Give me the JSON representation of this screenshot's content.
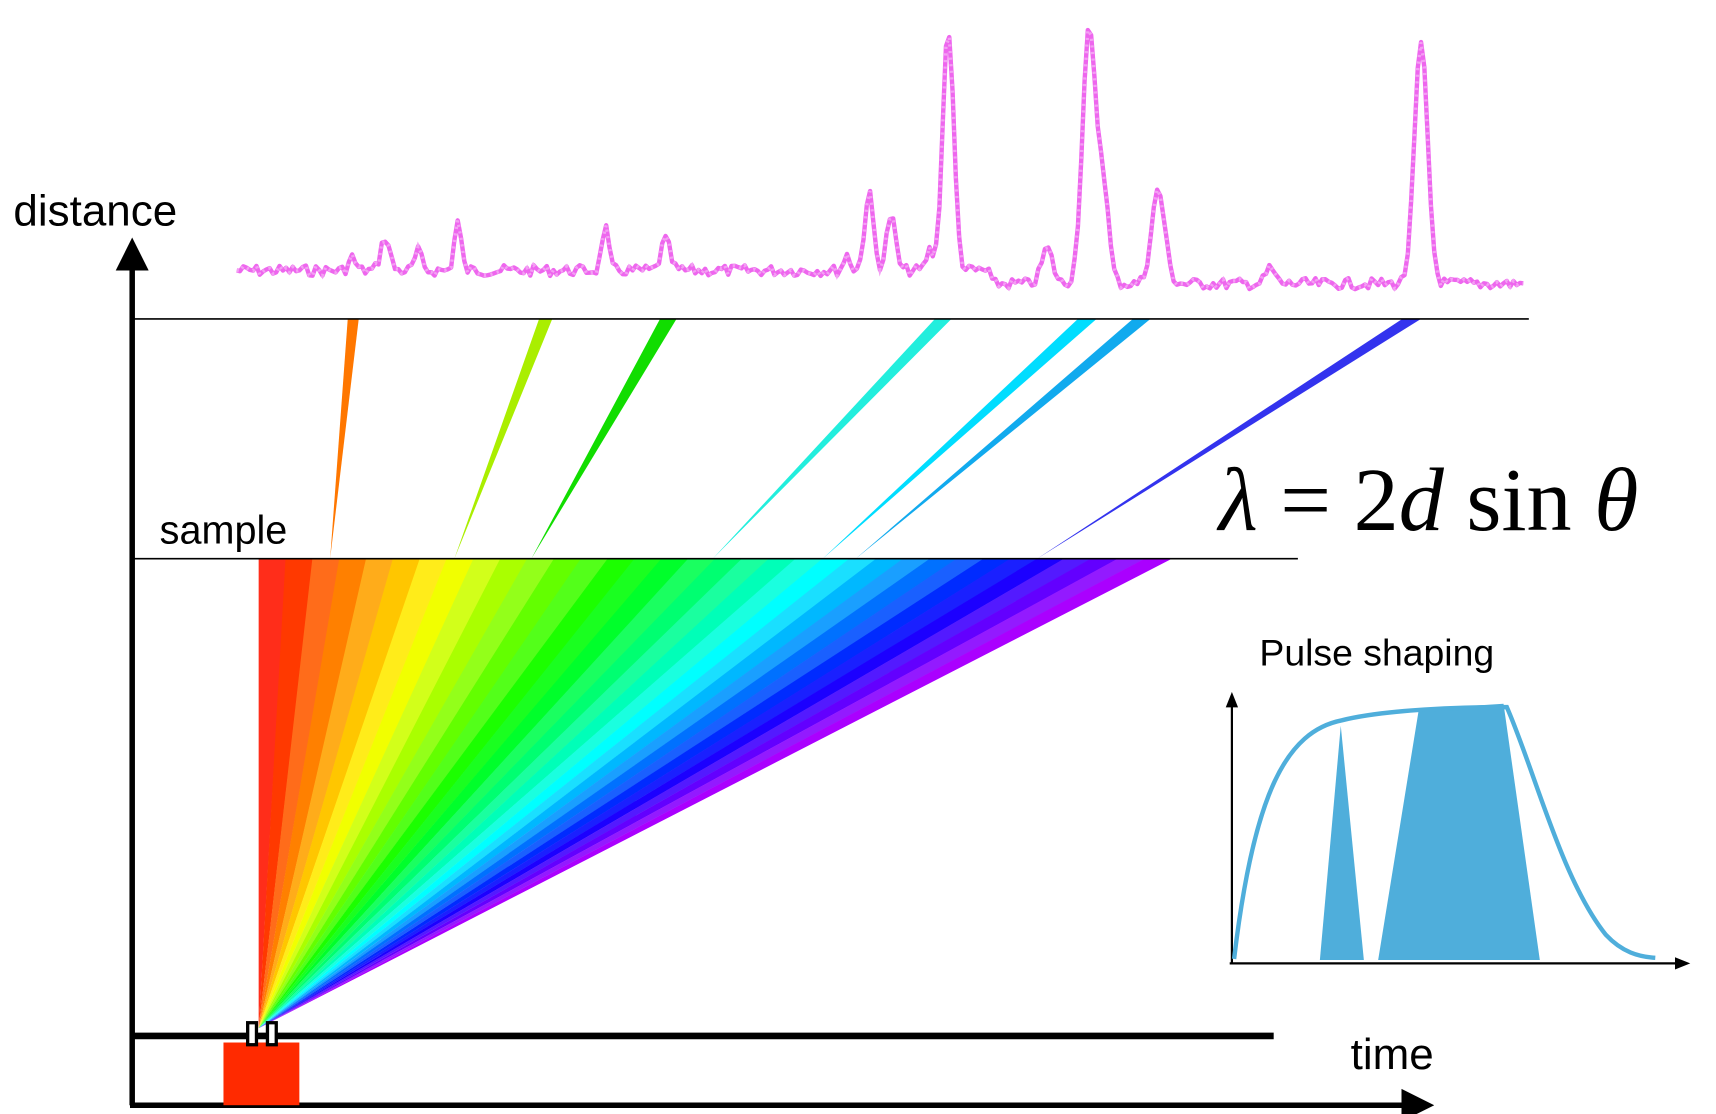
{
  "labels": {
    "distance": "distance",
    "sample": "sample",
    "time": "time",
    "inset_title": "Pulse shaping"
  },
  "formula": [
    "λ",
    " = 2",
    "d",
    " sin ",
    "θ"
  ]
}
